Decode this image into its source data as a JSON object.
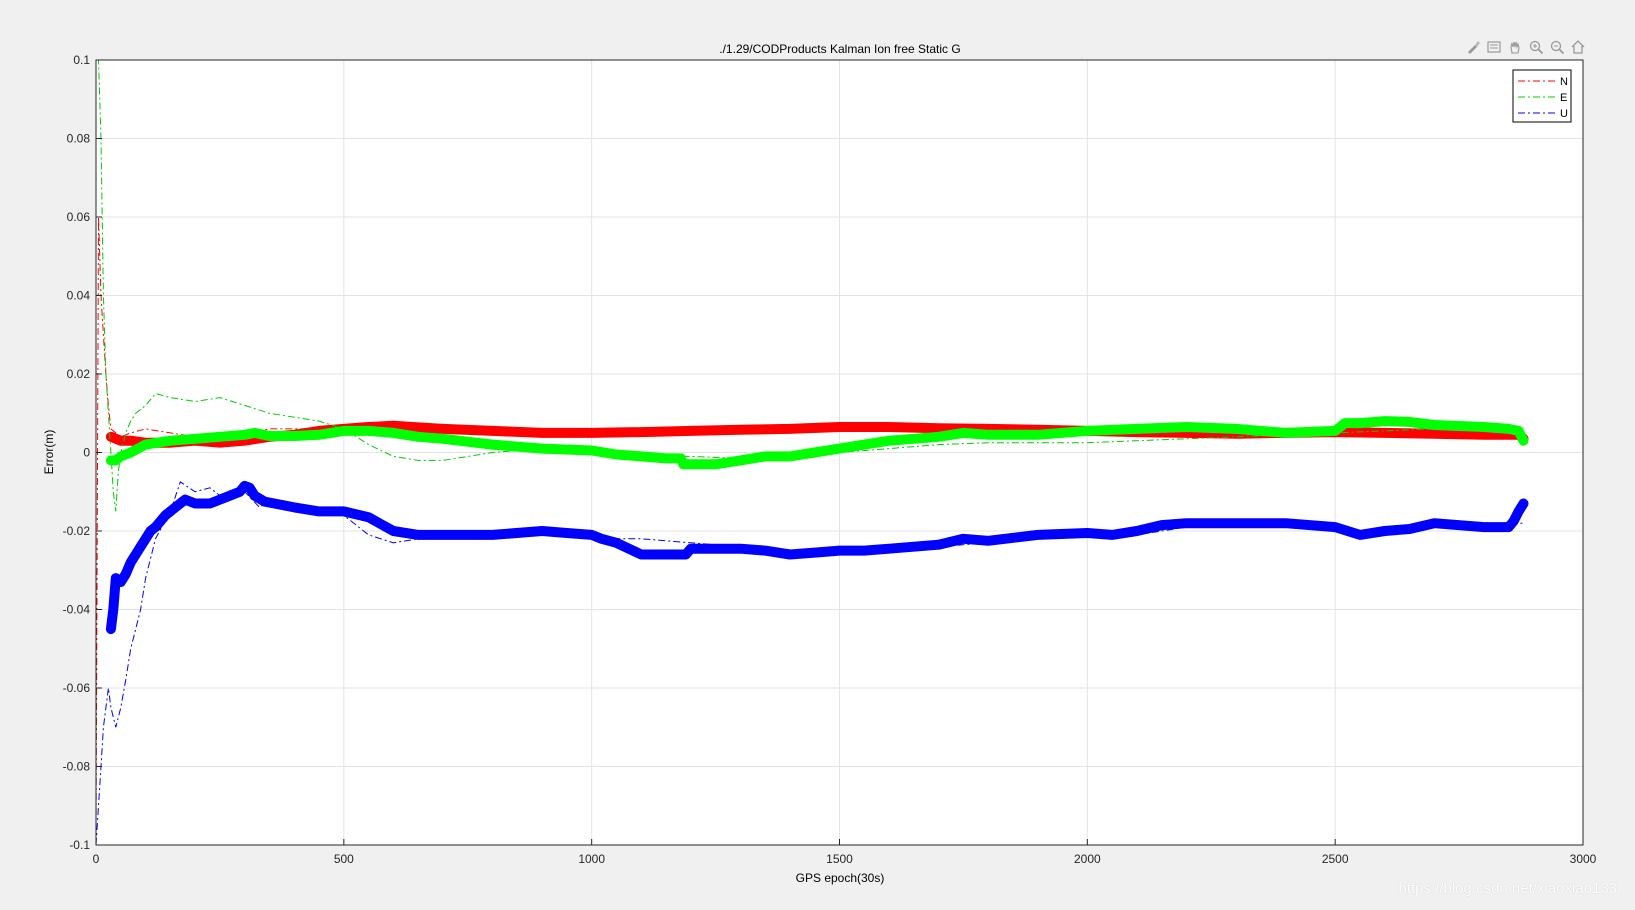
{
  "toolbar": {
    "icons": [
      "brush-icon",
      "insert-legend-icon",
      "pan-icon",
      "zoom-in-icon",
      "zoom-out-icon",
      "home-icon"
    ]
  },
  "watermark": "https://blog.csdn.net/xiaoxiao133",
  "chart_data": {
    "type": "line",
    "title": "./1.29/CODProducts Kalman Ion free Static G",
    "xlabel": "GPS epoch(30s)",
    "ylabel": "Error(m)",
    "xlim": [
      0,
      3000
    ],
    "ylim": [
      -0.1,
      0.1
    ],
    "xticks": [
      0,
      500,
      1000,
      1500,
      2000,
      2500,
      3000
    ],
    "yticks": [
      -0.1,
      -0.08,
      -0.06,
      -0.04,
      -0.02,
      0,
      0.02,
      0.04,
      0.06,
      0.08,
      0.1
    ],
    "xtick_labels": [
      "0",
      "500",
      "1000",
      "1500",
      "2000",
      "2500",
      "3000"
    ],
    "ytick_labels": [
      "-0.1",
      "-0.08",
      "-0.06",
      "-0.04",
      "-0.02",
      "0",
      "0.02",
      "0.04",
      "0.06",
      "0.08",
      "0.1"
    ],
    "grid": true,
    "legend_position": "top-right",
    "series": [
      {
        "name": "N",
        "color": "#ff0000",
        "style": "dashdot",
        "x": [
          0,
          5,
          10,
          15,
          20,
          25,
          30,
          40,
          50,
          70,
          100,
          150,
          200,
          250,
          300,
          350,
          400,
          500,
          600,
          650,
          700,
          800,
          900,
          1000,
          1100,
          1200,
          1300,
          1400,
          1500,
          1600,
          1700,
          1800,
          1900,
          2000,
          2100,
          2200,
          2300,
          2400,
          2500,
          2600,
          2700,
          2800,
          2880
        ],
        "y": [
          -0.1,
          0.06,
          0.04,
          0.03,
          0.02,
          0.012,
          0.006,
          0.005,
          0.004,
          0.005,
          0.006,
          0.005,
          0.004,
          0.004,
          0.005,
          0.006,
          0.006,
          0.006,
          0.0065,
          0.006,
          0.0055,
          0.005,
          0.005,
          0.0048,
          0.005,
          0.005,
          0.0055,
          0.006,
          0.0065,
          0.0065,
          0.006,
          0.006,
          0.006,
          0.006,
          0.0055,
          0.005,
          0.005,
          0.0048,
          0.0048,
          0.0048,
          0.0046,
          0.0044,
          0.0042
        ]
      },
      {
        "name": "N",
        "color": "#ff0000",
        "style": "circles",
        "x": [
          30,
          40,
          50,
          70,
          100,
          150,
          200,
          250,
          300,
          350,
          400,
          450,
          500,
          550,
          600,
          650,
          700,
          800,
          900,
          1000,
          1100,
          1200,
          1300,
          1400,
          1500,
          1600,
          1700,
          1800,
          1900,
          2000,
          2100,
          2200,
          2300,
          2400,
          2500,
          2600,
          2700,
          2800,
          2870,
          2880
        ],
        "y": [
          0.004,
          0.0035,
          0.003,
          0.003,
          0.0025,
          0.0025,
          0.003,
          0.0025,
          0.003,
          0.004,
          0.0045,
          0.0055,
          0.006,
          0.0065,
          0.0068,
          0.0064,
          0.006,
          0.0055,
          0.005,
          0.005,
          0.0052,
          0.0055,
          0.0058,
          0.006,
          0.0065,
          0.0065,
          0.0062,
          0.006,
          0.0058,
          0.0055,
          0.0052,
          0.005,
          0.0048,
          0.005,
          0.0052,
          0.005,
          0.0048,
          0.0045,
          0.0045,
          0.0035
        ]
      },
      {
        "name": "E",
        "color": "#00cc00",
        "style": "dashdot",
        "x": [
          0,
          5,
          10,
          15,
          20,
          25,
          30,
          35,
          40,
          45,
          50,
          60,
          70,
          80,
          100,
          120,
          150,
          200,
          250,
          300,
          350,
          400,
          450,
          500,
          550,
          600,
          650,
          700,
          800,
          900,
          1000,
          1100,
          1200,
          1300,
          1400,
          1500,
          1600,
          1700,
          1800,
          1900,
          2000,
          2100,
          2200,
          2300,
          2400,
          2500,
          2600,
          2700,
          2800,
          2880
        ],
        "y": [
          0.1,
          0.1,
          0.08,
          0.04,
          0.02,
          0.01,
          0.0,
          -0.01,
          -0.015,
          -0.005,
          0.0,
          0.005,
          0.008,
          0.01,
          0.012,
          0.015,
          0.014,
          0.013,
          0.014,
          0.012,
          0.01,
          0.009,
          0.008,
          0.006,
          0.002,
          -0.001,
          -0.002,
          -0.002,
          0.0,
          0.001,
          0.0,
          -0.001,
          -0.001,
          -0.0015,
          -0.0015,
          0.0,
          0.001,
          0.002,
          0.0025,
          0.0025,
          0.0025,
          0.003,
          0.0035,
          0.004,
          0.0045,
          0.005,
          0.0055,
          0.006,
          0.006,
          0.006
        ]
      },
      {
        "name": "E",
        "color": "#00ff00",
        "style": "circles",
        "x": [
          30,
          40,
          50,
          70,
          100,
          150,
          200,
          250,
          300,
          320,
          350,
          400,
          450,
          500,
          550,
          600,
          650,
          700,
          800,
          900,
          1000,
          1050,
          1100,
          1150,
          1180,
          1185,
          1200,
          1250,
          1300,
          1350,
          1400,
          1450,
          1500,
          1550,
          1600,
          1650,
          1700,
          1750,
          1800,
          1900,
          2000,
          2100,
          2200,
          2300,
          2400,
          2500,
          2520,
          2550,
          2600,
          2650,
          2700,
          2800,
          2850,
          2870,
          2880
        ],
        "y": [
          -0.002,
          -0.002,
          -0.001,
          0.0,
          0.002,
          0.003,
          0.0035,
          0.004,
          0.0045,
          0.005,
          0.0042,
          0.0042,
          0.0045,
          0.0055,
          0.0055,
          0.005,
          0.004,
          0.0035,
          0.002,
          0.001,
          0.0005,
          -0.0005,
          -0.001,
          -0.0015,
          -0.0015,
          -0.003,
          -0.003,
          -0.003,
          -0.002,
          -0.001,
          -0.001,
          0.0,
          0.001,
          0.002,
          0.003,
          0.0035,
          0.004,
          0.005,
          0.0045,
          0.0045,
          0.0055,
          0.006,
          0.0065,
          0.006,
          0.005,
          0.0055,
          0.0075,
          0.0075,
          0.008,
          0.0078,
          0.007,
          0.0065,
          0.006,
          0.0055,
          0.003
        ]
      },
      {
        "name": "U",
        "color": "#0000ff",
        "style": "dashdot",
        "x": [
          0,
          5,
          10,
          15,
          20,
          25,
          30,
          40,
          50,
          60,
          70,
          80,
          90,
          100,
          120,
          150,
          170,
          200,
          230,
          260,
          300,
          330,
          350,
          400,
          450,
          500,
          550,
          600,
          650,
          700,
          800,
          900,
          1000,
          1050,
          1100,
          1200,
          1300,
          1350,
          1400,
          1500,
          1600,
          1700,
          1800,
          1900,
          2000,
          2100,
          2200,
          2300,
          2400,
          2500,
          2550,
          2600,
          2700,
          2800,
          2880
        ],
        "y": [
          -0.1,
          -0.09,
          -0.08,
          -0.07,
          -0.065,
          -0.06,
          -0.065,
          -0.07,
          -0.065,
          -0.058,
          -0.05,
          -0.045,
          -0.04,
          -0.032,
          -0.022,
          -0.015,
          -0.0075,
          -0.01,
          -0.009,
          -0.012,
          -0.01,
          -0.014,
          -0.012,
          -0.014,
          -0.015,
          -0.016,
          -0.021,
          -0.023,
          -0.022,
          -0.021,
          -0.021,
          -0.021,
          -0.021,
          -0.022,
          -0.022,
          -0.023,
          -0.024,
          -0.025,
          -0.025,
          -0.025,
          -0.025,
          -0.024,
          -0.023,
          -0.022,
          -0.021,
          -0.021,
          -0.019,
          -0.019,
          -0.019,
          -0.02,
          -0.021,
          -0.02,
          -0.019,
          -0.018,
          -0.018
        ]
      },
      {
        "name": "U",
        "color": "#0000ff",
        "style": "circles",
        "x": [
          30,
          35,
          40,
          50,
          60,
          70,
          80,
          90,
          100,
          110,
          120,
          140,
          160,
          180,
          200,
          230,
          250,
          270,
          290,
          300,
          310,
          320,
          340,
          360,
          400,
          450,
          500,
          550,
          600,
          650,
          700,
          800,
          900,
          950,
          1000,
          1020,
          1050,
          1100,
          1150,
          1190,
          1200,
          1250,
          1300,
          1350,
          1400,
          1450,
          1500,
          1550,
          1600,
          1650,
          1700,
          1750,
          1800,
          1900,
          2000,
          2050,
          2100,
          2150,
          2200,
          2300,
          2400,
          2500,
          2550,
          2600,
          2650,
          2700,
          2800,
          2850,
          2860,
          2870,
          2880
        ],
        "y": [
          -0.045,
          -0.04,
          -0.032,
          -0.033,
          -0.031,
          -0.028,
          -0.026,
          -0.024,
          -0.022,
          -0.02,
          -0.019,
          -0.016,
          -0.014,
          -0.012,
          -0.013,
          -0.013,
          -0.012,
          -0.011,
          -0.01,
          -0.0085,
          -0.009,
          -0.011,
          -0.0125,
          -0.013,
          -0.014,
          -0.015,
          -0.015,
          -0.0165,
          -0.02,
          -0.021,
          -0.021,
          -0.021,
          -0.02,
          -0.0205,
          -0.021,
          -0.022,
          -0.023,
          -0.026,
          -0.026,
          -0.026,
          -0.0245,
          -0.0245,
          -0.0245,
          -0.025,
          -0.026,
          -0.0255,
          -0.025,
          -0.025,
          -0.0245,
          -0.024,
          -0.0235,
          -0.022,
          -0.0225,
          -0.021,
          -0.0205,
          -0.021,
          -0.02,
          -0.0185,
          -0.018,
          -0.018,
          -0.018,
          -0.019,
          -0.021,
          -0.02,
          -0.0195,
          -0.018,
          -0.019,
          -0.019,
          -0.0175,
          -0.015,
          -0.013
        ]
      }
    ]
  }
}
